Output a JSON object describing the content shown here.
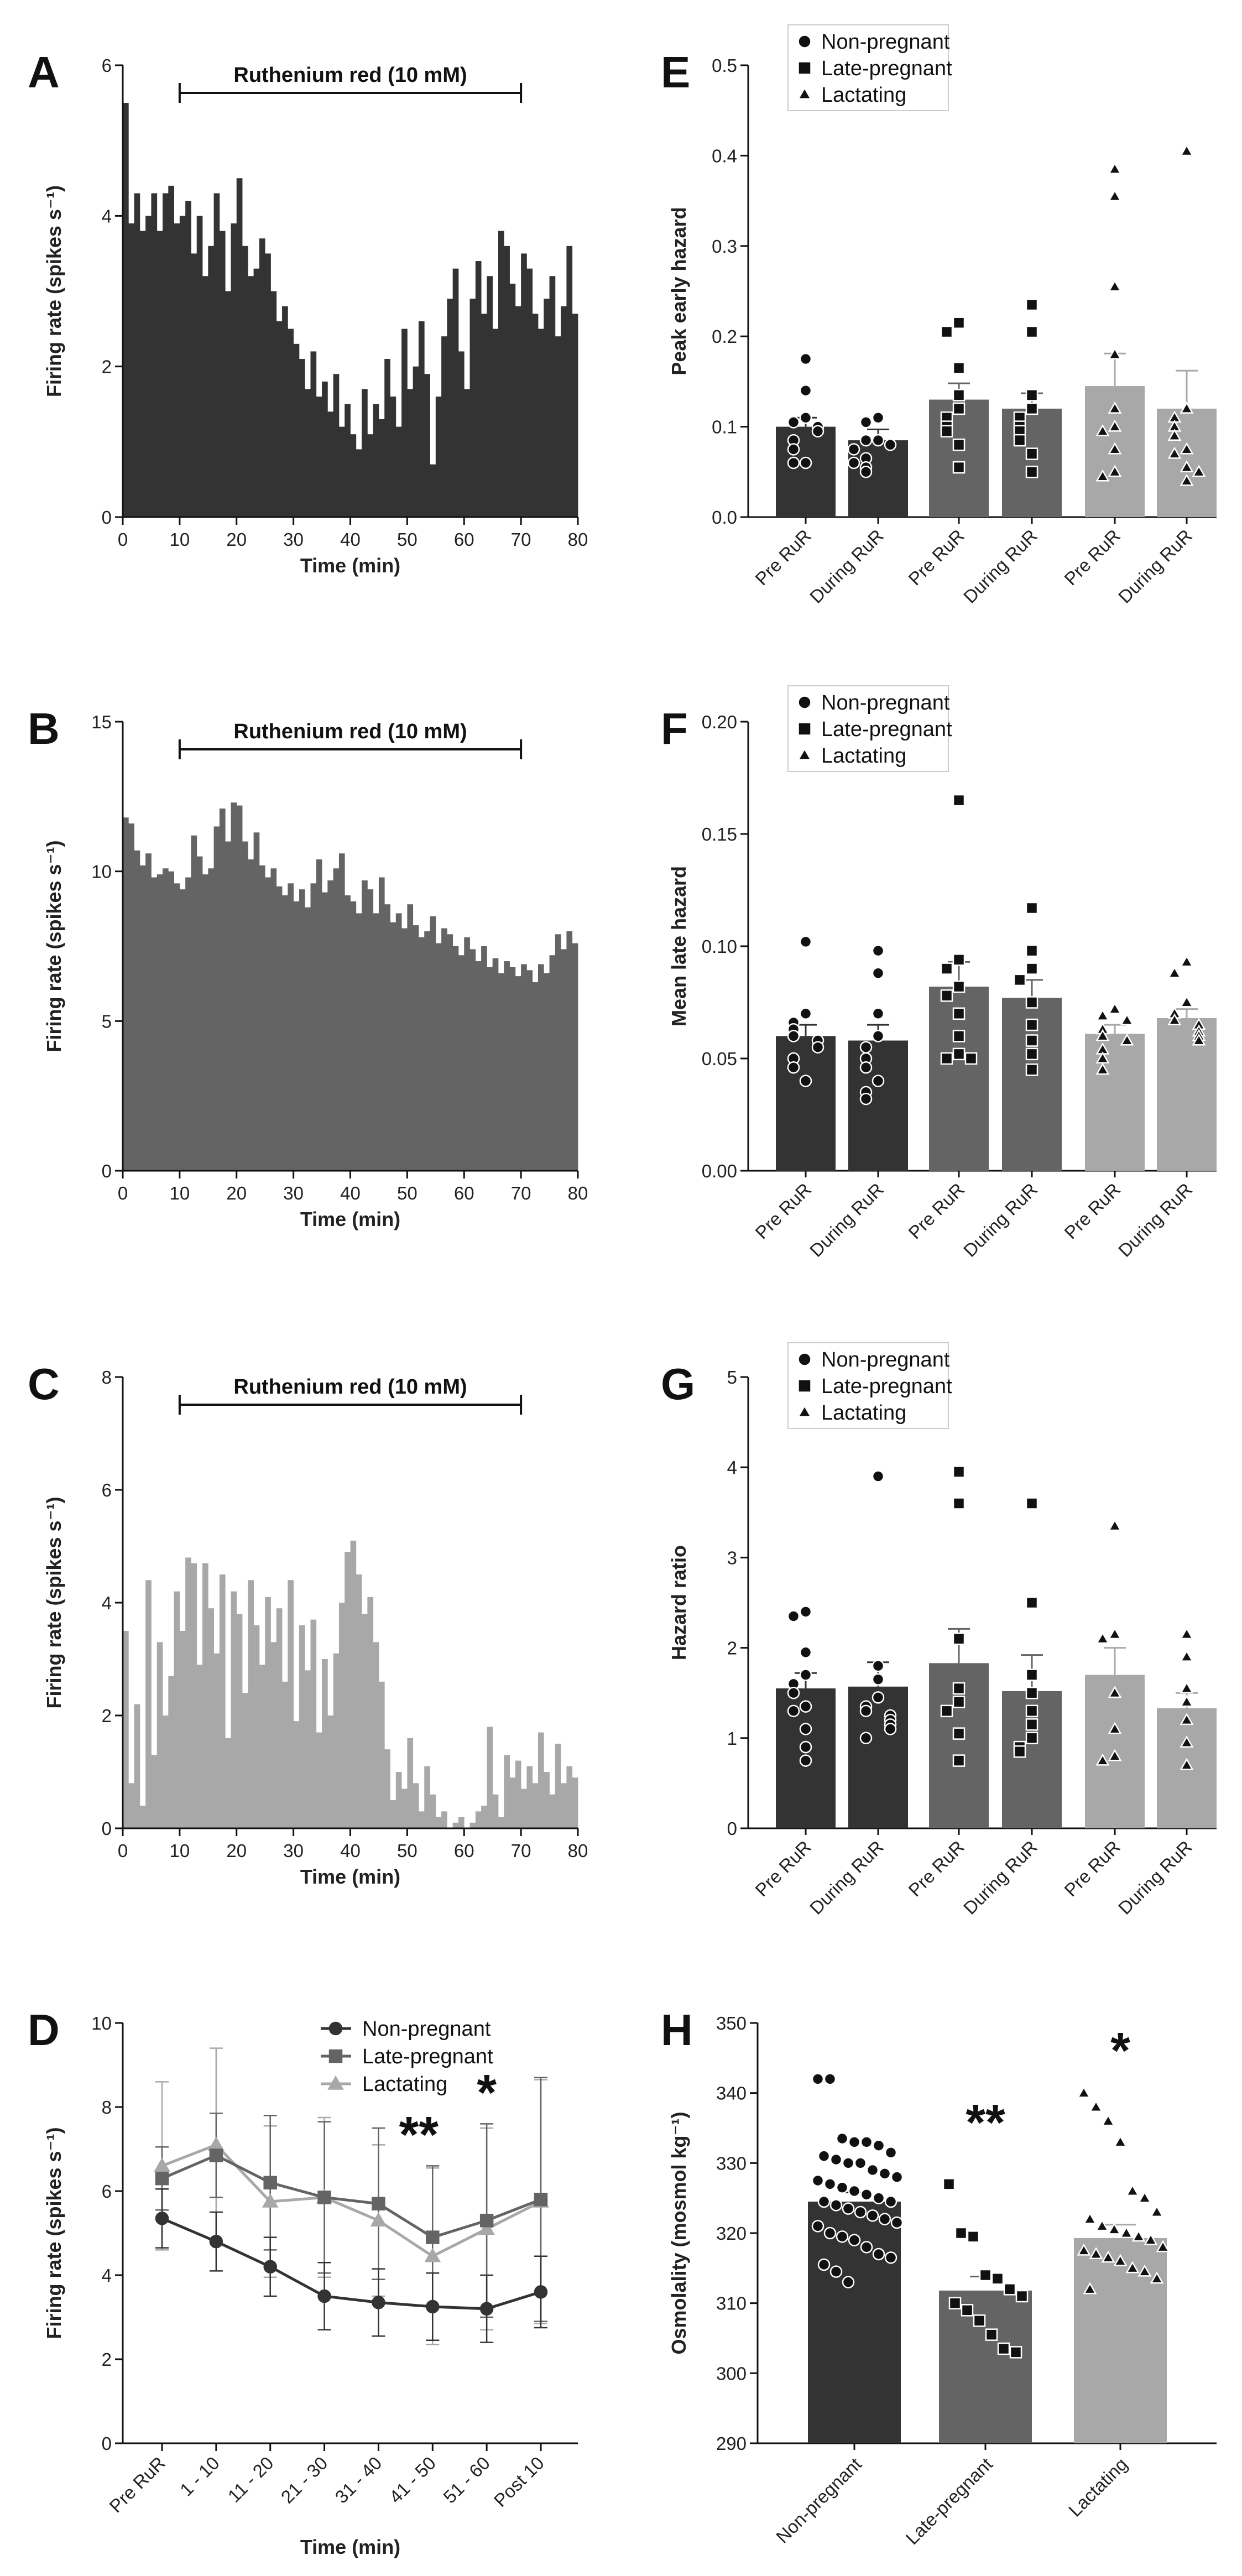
{
  "colors": {
    "non_pregnant": "#333333",
    "late_pregnant": "#646464",
    "lactating": "#a8a8a8",
    "axis": "#111111"
  },
  "legend_labels": [
    "Non-pregnant",
    "Late-pregnant",
    "Lactating"
  ],
  "chart_data": [
    {
      "panel": "A",
      "type": "bar",
      "variant": "histogram",
      "xlabel": "Time (min)",
      "ylabel": "Firing rate (spikes s⁻¹)",
      "xlim": [
        0,
        80
      ],
      "ylim": [
        0,
        6
      ],
      "xticks": [
        0,
        10,
        20,
        30,
        40,
        50,
        60,
        70,
        80
      ],
      "yticks": [
        0,
        2,
        4,
        6
      ],
      "annotation": "Ruthenium red (10 mM)",
      "annotation_range": [
        10,
        70
      ],
      "color": "#333333",
      "bin_width_min": 1,
      "values": [
        5.5,
        3.9,
        4.3,
        3.8,
        4.0,
        4.3,
        3.8,
        4.3,
        4.4,
        3.9,
        4.0,
        4.2,
        3.5,
        4.0,
        3.2,
        3.6,
        4.3,
        3.8,
        3.0,
        3.9,
        4.5,
        3.6,
        3.2,
        3.3,
        3.7,
        3.5,
        3.0,
        2.6,
        2.8,
        2.5,
        2.3,
        2.1,
        1.7,
        2.2,
        1.6,
        1.8,
        1.4,
        1.9,
        1.2,
        1.5,
        1.1,
        0.9,
        1.7,
        1.1,
        1.5,
        1.3,
        2.1,
        1.6,
        1.2,
        2.5,
        1.7,
        2.0,
        2.6,
        1.9,
        0.7,
        1.6,
        2.4,
        2.9,
        3.3,
        2.2,
        1.7,
        2.9,
        3.4,
        2.7,
        3.2,
        2.5,
        3.8,
        3.6,
        3.1,
        2.8,
        3.5,
        3.3,
        2.7,
        2.5,
        2.9,
        3.2,
        2.4,
        2.8,
        3.6,
        2.7
      ]
    },
    {
      "panel": "B",
      "type": "bar",
      "variant": "histogram",
      "xlabel": "Time (min)",
      "ylabel": "Firing rate (spikes s⁻¹)",
      "xlim": [
        0,
        80
      ],
      "ylim": [
        0,
        15
      ],
      "xticks": [
        0,
        10,
        20,
        30,
        40,
        50,
        60,
        70,
        80
      ],
      "yticks": [
        0,
        5,
        10,
        15
      ],
      "annotation": "Ruthenium red (10 mM)",
      "annotation_range": [
        10,
        70
      ],
      "color": "#646464",
      "bin_width_min": 1,
      "values": [
        11.8,
        11.6,
        10.7,
        10.2,
        10.6,
        9.8,
        9.9,
        10.1,
        10.0,
        9.6,
        9.4,
        9.8,
        11.2,
        10.5,
        9.9,
        10.1,
        11.5,
        12.1,
        11.0,
        12.3,
        12.2,
        11.0,
        10.4,
        11.3,
        10.2,
        9.8,
        10.1,
        9.5,
        9.2,
        9.6,
        9.0,
        9.4,
        8.8,
        9.6,
        10.4,
        9.3,
        9.7,
        10.1,
        10.6,
        9.2,
        9.0,
        8.6,
        9.7,
        9.4,
        8.6,
        9.8,
        8.9,
        8.3,
        8.6,
        8.1,
        8.9,
        8.2,
        7.8,
        8.0,
        8.5,
        7.6,
        8.1,
        7.9,
        7.5,
        7.2,
        7.8,
        7.4,
        7.0,
        7.5,
        6.8,
        7.1,
        6.6,
        7.0,
        6.8,
        6.5,
        6.9,
        6.7,
        6.3,
        6.9,
        6.6,
        7.2,
        7.9,
        7.4,
        8.0,
        7.6
      ]
    },
    {
      "panel": "C",
      "type": "bar",
      "variant": "histogram",
      "xlabel": "Time (min)",
      "ylabel": "Firing rate (spikes s⁻¹)",
      "xlim": [
        0,
        80
      ],
      "ylim": [
        0,
        8
      ],
      "xticks": [
        0,
        10,
        20,
        30,
        40,
        50,
        60,
        70,
        80
      ],
      "yticks": [
        0,
        2,
        4,
        6,
        8
      ],
      "annotation": "Ruthenium red (10 mM)",
      "annotation_range": [
        10,
        70
      ],
      "color": "#a8a8a8",
      "bin_width_min": 1,
      "values": [
        3.5,
        0.8,
        2.2,
        0.4,
        4.4,
        1.3,
        3.3,
        2.0,
        2.7,
        4.2,
        3.5,
        4.8,
        4.7,
        2.9,
        4.7,
        3.9,
        3.1,
        4.5,
        1.6,
        4.2,
        3.8,
        2.4,
        4.4,
        3.6,
        2.9,
        4.1,
        3.3,
        3.9,
        2.6,
        4.4,
        1.9,
        3.6,
        2.8,
        3.7,
        1.7,
        3.0,
        2.0,
        3.1,
        4.0,
        4.9,
        5.1,
        4.5,
        3.8,
        4.1,
        3.3,
        2.6,
        1.4,
        0.5,
        1.0,
        0.7,
        1.6,
        0.8,
        0.3,
        1.1,
        0.6,
        0.2,
        0.3,
        0.0,
        0.1,
        0.2,
        0.0,
        0.1,
        0.3,
        0.4,
        1.8,
        0.6,
        0.2,
        1.3,
        0.9,
        1.2,
        0.7,
        1.1,
        0.8,
        1.7,
        1.0,
        0.6,
        1.5,
        0.8,
        1.1,
        0.9
      ]
    },
    {
      "panel": "D",
      "type": "line",
      "xlabel": "Time (min)",
      "ylabel": "Firing rate (spikes s⁻¹)",
      "ylim": [
        0,
        10
      ],
      "yticks": [
        0,
        2,
        4,
        6,
        8,
        10
      ],
      "categories": [
        "Pre RuR",
        "1 - 10",
        "11 - 20",
        "21 - 30",
        "31 - 40",
        "41 - 50",
        "51 - 60",
        "Post 10"
      ],
      "series": [
        {
          "name": "Non-pregnant",
          "color": "#333333",
          "marker": "circle",
          "values": [
            5.35,
            4.8,
            4.2,
            3.5,
            3.35,
            3.25,
            3.2,
            3.6
          ],
          "errors": [
            0.7,
            0.7,
            0.7,
            0.8,
            0.8,
            0.8,
            0.8,
            0.85
          ]
        },
        {
          "name": "Late-pregnant",
          "color": "#646464",
          "marker": "square",
          "values": [
            6.3,
            6.85,
            6.2,
            5.85,
            5.7,
            4.9,
            5.3,
            5.8
          ],
          "errors": [
            0.75,
            1.0,
            1.6,
            1.8,
            1.8,
            1.7,
            2.3,
            2.9
          ]
        },
        {
          "name": "Lactating",
          "color": "#a8a8a8",
          "marker": "triangle",
          "values": [
            6.6,
            7.1,
            5.75,
            5.85,
            5.3,
            4.45,
            5.1,
            5.75
          ],
          "errors": [
            2.0,
            2.3,
            1.8,
            1.9,
            1.8,
            2.1,
            2.4,
            2.9
          ]
        }
      ],
      "significance": [
        {
          "category": "41 - 50",
          "label": "**"
        },
        {
          "category": "51 - 60",
          "label": "*"
        }
      ]
    },
    {
      "panel": "E",
      "type": "bar",
      "ylabel": "Peak early hazard",
      "ylim": [
        0,
        0.5
      ],
      "yticks": [
        "0.0",
        "0.1",
        "0.2",
        "0.3",
        "0.4",
        "0.5"
      ],
      "categories": [
        "Pre RuR",
        "During RuR",
        "Pre RuR",
        "During RuR",
        "Pre RuR",
        "During RuR"
      ],
      "groups": [
        "Non-pregnant",
        "Non-pregnant",
        "Late-pregnant",
        "Late-pregnant",
        "Lactating",
        "Lactating"
      ],
      "values": [
        0.1,
        0.085,
        0.13,
        0.12,
        0.145,
        0.12
      ],
      "errors": [
        0.01,
        0.012,
        0.018,
        0.017,
        0.036,
        0.042
      ],
      "points": [
        [
          0.175,
          0.14,
          0.11,
          0.105,
          0.1,
          0.095,
          0.085,
          0.075,
          0.06,
          0.06
        ],
        [
          0.11,
          0.105,
          0.085,
          0.085,
          0.08,
          0.075,
          0.065,
          0.055,
          0.05,
          0.06
        ],
        [
          0.215,
          0.205,
          0.165,
          0.135,
          0.12,
          0.11,
          0.1,
          0.095,
          0.08,
          0.055
        ],
        [
          0.235,
          0.205,
          0.135,
          0.12,
          0.11,
          0.1,
          0.095,
          0.085,
          0.07,
          0.05
        ],
        [
          0.385,
          0.355,
          0.255,
          0.18,
          0.12,
          0.1,
          0.095,
          0.075,
          0.05,
          0.045
        ],
        [
          0.405,
          0.12,
          0.11,
          0.1,
          0.09,
          0.075,
          0.07,
          0.055,
          0.04,
          0.05
        ]
      ]
    },
    {
      "panel": "F",
      "type": "bar",
      "ylabel": "Mean late hazard",
      "ylim": [
        0,
        0.2
      ],
      "yticks": [
        "0.00",
        "0.05",
        "0.10",
        "0.15",
        "0.20"
      ],
      "categories": [
        "Pre RuR",
        "During RuR",
        "Pre RuR",
        "During RuR",
        "Pre RuR",
        "During RuR"
      ],
      "groups": [
        "Non-pregnant",
        "Non-pregnant",
        "Late-pregnant",
        "Late-pregnant",
        "Lactating",
        "Lactating"
      ],
      "values": [
        0.06,
        0.058,
        0.082,
        0.077,
        0.061,
        0.068
      ],
      "errors": [
        0.005,
        0.007,
        0.011,
        0.008,
        0.004,
        0.004
      ],
      "points": [
        [
          0.102,
          0.07,
          0.066,
          0.063,
          0.06,
          0.058,
          0.055,
          0.05,
          0.046,
          0.04
        ],
        [
          0.098,
          0.088,
          0.07,
          0.06,
          0.055,
          0.05,
          0.046,
          0.04,
          0.035,
          0.032
        ],
        [
          0.165,
          0.094,
          0.09,
          0.082,
          0.078,
          0.07,
          0.06,
          0.052,
          0.05,
          0.05
        ],
        [
          0.117,
          0.098,
          0.09,
          0.085,
          0.075,
          0.065,
          0.058,
          0.052,
          0.045
        ],
        [
          0.072,
          0.069,
          0.067,
          0.063,
          0.06,
          0.058,
          0.054,
          0.05,
          0.045
        ],
        [
          0.093,
          0.088,
          0.075,
          0.07,
          0.067,
          0.065,
          0.062,
          0.06,
          0.058
        ]
      ]
    },
    {
      "panel": "G",
      "type": "bar",
      "ylabel": "Hazard ratio",
      "ylim": [
        0,
        5
      ],
      "yticks": [
        "0",
        "1",
        "2",
        "3",
        "4",
        "5"
      ],
      "categories": [
        "Pre RuR",
        "During RuR",
        "Pre RuR",
        "During RuR",
        "Pre RuR",
        "During RuR"
      ],
      "groups": [
        "Non-pregnant",
        "Non-pregnant",
        "Late-pregnant",
        "Late-pregnant",
        "Lactating",
        "Lactating"
      ],
      "values": [
        1.55,
        1.57,
        1.83,
        1.52,
        1.7,
        1.33
      ],
      "errors": [
        0.17,
        0.27,
        0.38,
        0.4,
        0.3,
        0.17
      ],
      "points": [
        [
          2.4,
          2.35,
          1.95,
          1.7,
          1.6,
          1.5,
          1.35,
          1.3,
          1.1,
          0.9,
          0.75
        ],
        [
          3.9,
          1.8,
          1.65,
          1.45,
          1.35,
          1.3,
          1.25,
          1.2,
          1.15,
          1.1,
          1.0
        ],
        [
          3.95,
          3.6,
          2.1,
          1.55,
          1.4,
          1.3,
          1.05,
          0.75
        ],
        [
          3.6,
          2.5,
          1.7,
          1.5,
          1.3,
          1.15,
          1.0,
          0.9,
          0.85
        ],
        [
          3.35,
          2.15,
          2.1,
          1.5,
          1.1,
          0.8,
          0.75
        ],
        [
          2.15,
          1.9,
          1.55,
          1.4,
          1.2,
          0.95,
          0.7
        ]
      ]
    },
    {
      "panel": "H",
      "type": "bar",
      "ylabel": "Osmolality (mosmol kg⁻¹)",
      "ylim": [
        290,
        350
      ],
      "yticks": [
        290,
        300,
        310,
        320,
        330,
        340,
        350
      ],
      "categories": [
        "Non-pregnant",
        "Late-pregnant",
        "Lactating"
      ],
      "values": [
        324.5,
        311.8,
        319.3
      ],
      "errors": [
        1.3,
        2.0,
        1.9
      ],
      "significance": [
        "",
        "**",
        "*"
      ],
      "points": [
        [
          342,
          342,
          333.5,
          333,
          333,
          332.5,
          331.5,
          331,
          330.5,
          330,
          330,
          329,
          328.5,
          328,
          327.5,
          327,
          326.5,
          326,
          325.5,
          325,
          324.5,
          324.5,
          324,
          323.5,
          323,
          322.5,
          322,
          321.5,
          321,
          320,
          319.5,
          319,
          318,
          317,
          316.5,
          315.5,
          314.5,
          313
        ],
        [
          327,
          320,
          319.5,
          314,
          313.5,
          312,
          311,
          310,
          309,
          307.5,
          305.5,
          303.5,
          303
        ],
        [
          340,
          338,
          336,
          333,
          326,
          325,
          323,
          322,
          321,
          320.5,
          320,
          319.5,
          319,
          318,
          317.5,
          317,
          316.5,
          316,
          315,
          314.5,
          313.5,
          312
        ]
      ]
    }
  ]
}
